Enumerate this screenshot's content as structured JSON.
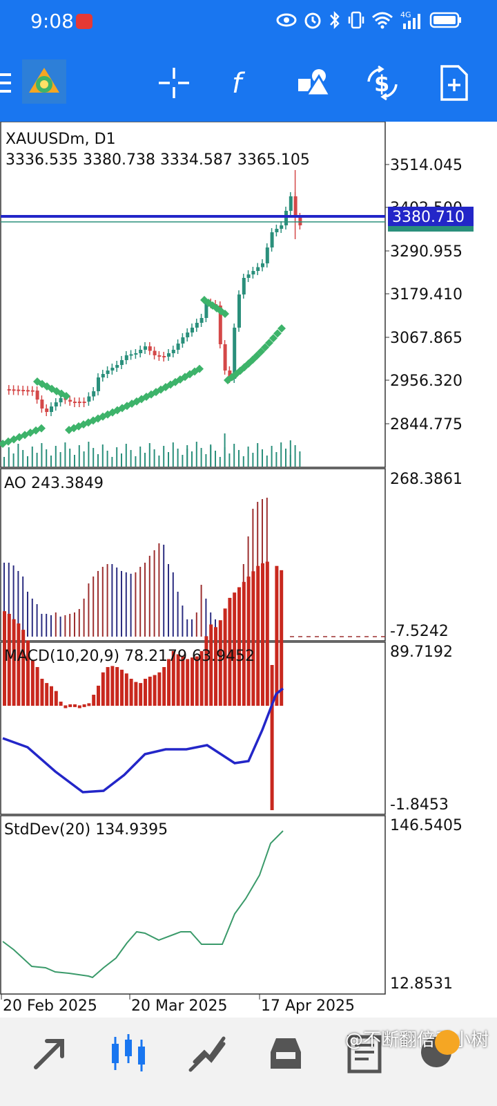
{
  "status_bar": {
    "time": "9:08",
    "icons": [
      "eye-icon",
      "alarm-icon",
      "bluetooth-icon",
      "vibrate-icon",
      "wifi-icon",
      "signal-4g-icon",
      "battery-icon"
    ],
    "network": "4G"
  },
  "toolbar": {
    "icons": [
      "menu-icon",
      "mt-logo-icon",
      "crosshair-icon",
      "indicators-icon",
      "objects-icon",
      "trade-icon",
      "new-order-icon"
    ],
    "indicator_glyph": "f"
  },
  "main_chart": {
    "symbol": "XAUUSDm, D1",
    "ohlc": "3336.535 3380.738 3334.587 3365.105",
    "price_levels": [
      "3514.045",
      "3402.500",
      "3290.955",
      "3179.410",
      "3067.865",
      "2956.320",
      "2844.775"
    ],
    "current_price": "3380.710",
    "current_price_color": "#2326c8"
  },
  "ao_panel": {
    "label": "AO 243.3849",
    "max": "268.3861",
    "min": "-7.5242"
  },
  "macd_panel": {
    "label": "MACD(10,20,9) 78.2179 63.9452",
    "max": "89.7192",
    "min": "-1.8453"
  },
  "stddev_panel": {
    "label": "StdDev(20) 134.9395",
    "max": "146.5405",
    "min": "12.8531"
  },
  "time_axis": [
    "20 Feb 2025",
    "20 Mar 2025",
    "17 Apr 2025"
  ],
  "bottom_nav": {
    "icons": [
      "quotes-icon",
      "chart-icon",
      "trade-icon",
      "history-icon",
      "news-icon",
      "chat-icon"
    ],
    "watermark": "@不断翻倍乔小树"
  },
  "colors": {
    "bull": "#2a8f7b",
    "bear": "#d44848",
    "ao_up": "#9c2f2f",
    "ao_down": "#2b2d80",
    "macd_hist": "#c8281e",
    "macd_signal": "#2326c8",
    "psar": "#3db36a",
    "stddev": "#3a9a6a"
  }
}
